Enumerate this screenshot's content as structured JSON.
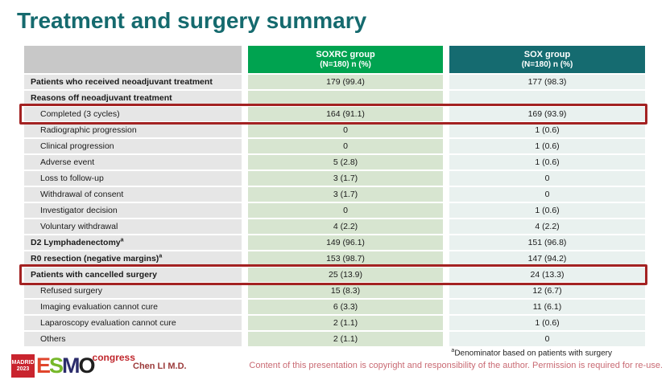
{
  "slide": {
    "title": "Treatment and surgery summary"
  },
  "table": {
    "header": {
      "label_col": "",
      "soxrc_group": "SOXRC group",
      "soxrc_sub": "(N=180)  n (%)",
      "sox_group": "SOX group",
      "sox_sub": "(N=180)  n (%)"
    },
    "rows": [
      {
        "label": "Patients who received neoadjuvant treatment",
        "sup": "",
        "soxrc": "179 (99.4)",
        "sox": "177 (98.3)",
        "bold": true,
        "indent": false,
        "highlight": false
      },
      {
        "label": "Reasons off neoadjuvant treatment",
        "sup": "",
        "soxrc": "",
        "sox": "",
        "bold": true,
        "indent": false,
        "highlight": false
      },
      {
        "label": "Completed (3 cycles)",
        "sup": "",
        "soxrc": "164 (91.1)",
        "sox": "169 (93.9)",
        "bold": false,
        "indent": true,
        "highlight": true
      },
      {
        "label": "Radiographic progression",
        "sup": "",
        "soxrc": "0",
        "sox": "1 (0.6)",
        "bold": false,
        "indent": true,
        "highlight": false
      },
      {
        "label": "Clinical progression",
        "sup": "",
        "soxrc": "0",
        "sox": "1 (0.6)",
        "bold": false,
        "indent": true,
        "highlight": false
      },
      {
        "label": "Adverse event",
        "sup": "",
        "soxrc": "5 (2.8)",
        "sox": "1 (0.6)",
        "bold": false,
        "indent": true,
        "highlight": false
      },
      {
        "label": "Loss to follow-up",
        "sup": "",
        "soxrc": "3 (1.7)",
        "sox": "0",
        "bold": false,
        "indent": true,
        "highlight": false
      },
      {
        "label": "Withdrawal of consent",
        "sup": "",
        "soxrc": "3 (1.7)",
        "sox": "0",
        "bold": false,
        "indent": true,
        "highlight": false
      },
      {
        "label": "Investigator decision",
        "sup": "",
        "soxrc": "0",
        "sox": "1 (0.6)",
        "bold": false,
        "indent": true,
        "highlight": false
      },
      {
        "label": "Voluntary withdrawal",
        "sup": "",
        "soxrc": "4 (2.2)",
        "sox": "4 (2.2)",
        "bold": false,
        "indent": true,
        "highlight": false
      },
      {
        "label": "D2 Lymphadenectomy",
        "sup": "a",
        "soxrc": "149 (96.1)",
        "sox": "151 (96.8)",
        "bold": true,
        "indent": false,
        "highlight": false
      },
      {
        "label": "R0 resection (negative margins)",
        "sup": "a",
        "soxrc": "153 (98.7)",
        "sox": "147 (94.2)",
        "bold": true,
        "indent": false,
        "highlight": false
      },
      {
        "label": "Patients with cancelled surgery",
        "sup": "",
        "soxrc": "25 (13.9)",
        "sox": "24 (13.3)",
        "bold": true,
        "indent": false,
        "highlight": true
      },
      {
        "label": "Refused surgery",
        "sup": "",
        "soxrc": "15 (8.3)",
        "sox": "12 (6.7)",
        "bold": false,
        "indent": true,
        "highlight": false
      },
      {
        "label": "Imaging evaluation cannot cure",
        "sup": "",
        "soxrc": "6 (3.3)",
        "sox": "11 (6.1)",
        "bold": false,
        "indent": true,
        "highlight": false
      },
      {
        "label": "Laparoscopy evaluation cannot cure",
        "sup": "",
        "soxrc": "2 (1.1)",
        "sox": "1 (0.6)",
        "bold": false,
        "indent": true,
        "highlight": false
      },
      {
        "label": "Others",
        "sup": "",
        "soxrc": "2 (1.1)",
        "sox": "0",
        "bold": false,
        "indent": true,
        "highlight": false
      }
    ]
  },
  "footer": {
    "footnote_sup": "a",
    "footnote": "Denominator based on patients with surgery",
    "presenter": "Chen LI M.D.",
    "copyright": "Content of this presentation is copyright and responsibility of the author. Permission is required for re-use.",
    "logo": {
      "badge_line1": "MADRID",
      "badge_line2": "2023",
      "letter_e": "E",
      "letter_s": "S",
      "letter_m": "M",
      "letter_o": "O",
      "congress": "congress"
    }
  },
  "colors": {
    "title": "#156a6e",
    "soxrc_header": "#00a350",
    "sox_header": "#156b70",
    "soxrc_cell": "#d7e5d0",
    "sox_cell": "#e9f1ef",
    "label_cell": "#e6e6e6",
    "header_label_cell": "#c8c8c8",
    "highlight_border": "#a32222",
    "presenter": "#9b3a3a",
    "copyright": "#c96a73"
  }
}
